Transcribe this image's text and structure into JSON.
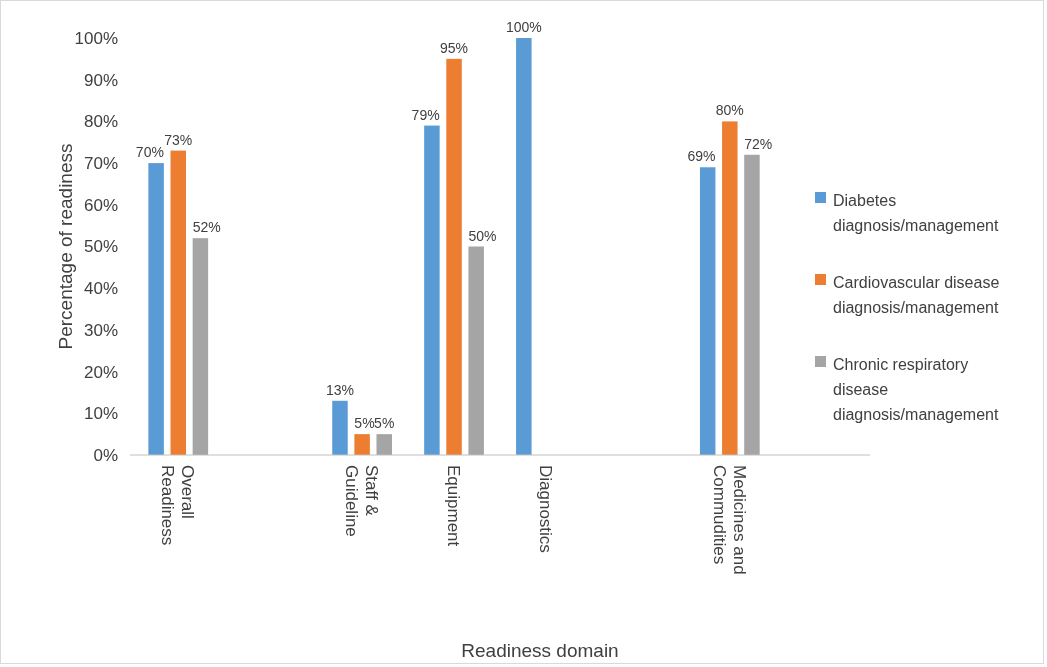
{
  "chart_data": {
    "type": "bar",
    "xlabel": "Readiness domain",
    "ylabel": "Percentage of readiness",
    "categories": [
      "Overall Readiness",
      null,
      "Staff & Guideline",
      "Equipment",
      "Diagnostics",
      null,
      "Medicines and Commudities",
      null
    ],
    "series": [
      {
        "name": "Diabetes diagnosis/management",
        "color": "#5b9bd5",
        "values": [
          70,
          null,
          13,
          79,
          100,
          null,
          69,
          null
        ],
        "value_labels": [
          "70%",
          null,
          "13%",
          "79%",
          "100%",
          null,
          "69%",
          null
        ]
      },
      {
        "name": "Cardiovascular disease diagnosis/management",
        "color": "#ed7d31",
        "values": [
          73,
          null,
          5,
          95,
          null,
          null,
          80,
          null
        ],
        "value_labels": [
          "73%",
          null,
          "5%",
          "95%",
          null,
          null,
          "80%",
          null
        ]
      },
      {
        "name": "Chronic respiratory disease diagnosis/management",
        "color": "#a5a5a5",
        "values": [
          52,
          null,
          5,
          50,
          null,
          null,
          72,
          null
        ],
        "value_labels": [
          "52%",
          null,
          "5%",
          "50%",
          null,
          null,
          "72%",
          null
        ]
      }
    ],
    "ylim": [
      0,
      100
    ],
    "yticks": [
      {
        "value": 0,
        "label": "0%"
      },
      {
        "value": 10,
        "label": "10%"
      },
      {
        "value": 20,
        "label": "20%"
      },
      {
        "value": 30,
        "label": "30%"
      },
      {
        "value": 40,
        "label": "40%"
      },
      {
        "value": 50,
        "label": "50%"
      },
      {
        "value": 60,
        "label": "60%"
      },
      {
        "value": 70,
        "label": "70%"
      },
      {
        "value": 80,
        "label": "80%"
      },
      {
        "value": 90,
        "label": "90%"
      },
      {
        "value": 100,
        "label": "100%"
      }
    ],
    "legend": "right"
  }
}
